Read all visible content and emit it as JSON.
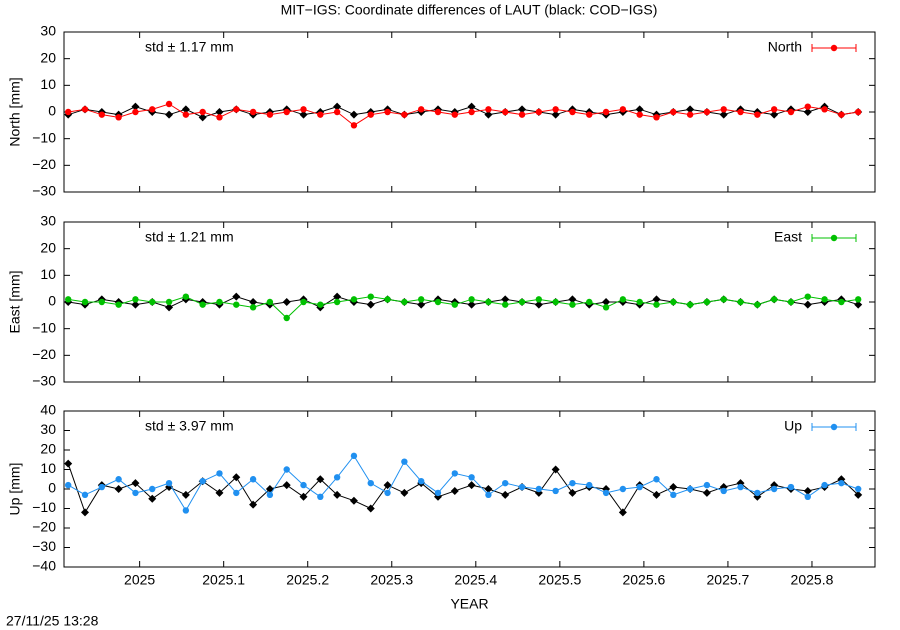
{
  "title": "MIT−IGS: Coordinate differences of LAUT (black: COD−IGS)",
  "timestamp": "27/11/25 13:28",
  "chart_data": [
    {
      "type": "line",
      "ylabel": "North [mm]",
      "annotation": "std ± 1.17 mm",
      "annotation_color": "#ff0000",
      "legend": "upper right",
      "show_xticklabels": false,
      "xlim": [
        2024.91,
        2025.875
      ],
      "xticks": [
        2025,
        2025.1,
        2025.2,
        2025.3,
        2025.4,
        2025.5,
        2025.6,
        2025.7,
        2025.8
      ],
      "ylim": [
        -30,
        30
      ],
      "yticks": [
        {
          "value": -30,
          "label": "−30"
        },
        {
          "value": -20,
          "label": "−20"
        },
        {
          "value": -10,
          "label": "−10"
        },
        0,
        10,
        20,
        30
      ],
      "x": [
        2024.915,
        2024.935,
        2024.955,
        2024.975,
        2024.995,
        2025.015,
        2025.035,
        2025.055,
        2025.075,
        2025.095,
        2025.115,
        2025.135,
        2025.155,
        2025.175,
        2025.195,
        2025.215,
        2025.235,
        2025.255,
        2025.275,
        2025.295,
        2025.315,
        2025.335,
        2025.355,
        2025.375,
        2025.395,
        2025.415,
        2025.435,
        2025.455,
        2025.475,
        2025.495,
        2025.515,
        2025.535,
        2025.555,
        2025.575,
        2025.595,
        2025.615,
        2025.635,
        2025.655,
        2025.675,
        2025.695,
        2025.715,
        2025.735,
        2025.755,
        2025.775,
        2025.795,
        2025.815,
        2025.835,
        2025.855
      ],
      "series": [
        {
          "color": "#000000",
          "marker": "diamond",
          "values": [
            -1,
            1,
            0,
            -1,
            2,
            0,
            -1,
            1,
            -2,
            0,
            1,
            -1,
            0,
            1,
            -1,
            0,
            2,
            -1,
            0,
            1,
            -1,
            0,
            1,
            0,
            2,
            -1,
            0,
            1,
            0,
            -1,
            1,
            0,
            -1,
            0,
            1,
            -1,
            0,
            1,
            0,
            -1,
            1,
            0,
            -1,
            1,
            0,
            2,
            -1,
            0
          ]
        },
        {
          "name": "North",
          "color": "#ff0000",
          "marker": "circle",
          "values": [
            0,
            1,
            -1,
            -2,
            0,
            1,
            3,
            -1,
            0,
            -2,
            1,
            0,
            -1,
            0,
            1,
            -1,
            0,
            -5,
            -1,
            0,
            -1,
            1,
            0,
            -1,
            0,
            1,
            0,
            -1,
            0,
            1,
            0,
            -1,
            0,
            1,
            -1,
            -2,
            0,
            -1,
            0,
            1,
            0,
            -1,
            1,
            0,
            2,
            1,
            -1,
            0
          ]
        }
      ]
    },
    {
      "type": "line",
      "ylabel": "East [mm]",
      "annotation": "std ± 1.21 mm",
      "annotation_color": "#00c000",
      "legend": "upper right",
      "show_xticklabels": false,
      "xlim": [
        2024.91,
        2025.875
      ],
      "xticks": [
        2025,
        2025.1,
        2025.2,
        2025.3,
        2025.4,
        2025.5,
        2025.6,
        2025.7,
        2025.8
      ],
      "ylim": [
        -30,
        30
      ],
      "yticks": [
        {
          "value": -30,
          "label": "−30"
        },
        {
          "value": -20,
          "label": "−20"
        },
        {
          "value": -10,
          "label": "−10"
        },
        0,
        10,
        20,
        30
      ],
      "x": [
        2024.915,
        2024.935,
        2024.955,
        2024.975,
        2024.995,
        2025.015,
        2025.035,
        2025.055,
        2025.075,
        2025.095,
        2025.115,
        2025.135,
        2025.155,
        2025.175,
        2025.195,
        2025.215,
        2025.235,
        2025.255,
        2025.275,
        2025.295,
        2025.315,
        2025.335,
        2025.355,
        2025.375,
        2025.395,
        2025.415,
        2025.435,
        2025.455,
        2025.475,
        2025.495,
        2025.515,
        2025.535,
        2025.555,
        2025.575,
        2025.595,
        2025.615,
        2025.635,
        2025.655,
        2025.675,
        2025.695,
        2025.715,
        2025.735,
        2025.755,
        2025.775,
        2025.795,
        2025.815,
        2025.835,
        2025.855
      ],
      "series": [
        {
          "color": "#000000",
          "marker": "diamond",
          "values": [
            0,
            -1,
            1,
            0,
            -1,
            0,
            -2,
            1,
            0,
            -1,
            2,
            0,
            -1,
            0,
            1,
            -2,
            2,
            0,
            -1,
            1,
            0,
            -1,
            1,
            0,
            -1,
            0,
            1,
            0,
            -1,
            0,
            1,
            -1,
            0,
            0,
            -1,
            1,
            0,
            -1,
            0,
            1,
            0,
            -1,
            1,
            0,
            -1,
            0,
            1,
            -1
          ]
        },
        {
          "name": "East",
          "color": "#00c000",
          "marker": "circle",
          "values": [
            1,
            0,
            0,
            -1,
            1,
            0,
            0,
            2,
            -1,
            0,
            -1,
            -2,
            0,
            -6,
            0,
            -1,
            0,
            1,
            2,
            1,
            0,
            1,
            0,
            -1,
            1,
            0,
            -1,
            0,
            1,
            0,
            -1,
            0,
            -2,
            1,
            0,
            -1,
            0,
            -1,
            0,
            1,
            0,
            -1,
            1,
            0,
            2,
            1,
            0,
            1
          ]
        }
      ]
    },
    {
      "type": "line",
      "ylabel": "Up [mm]",
      "xlabel": "YEAR",
      "annotation": "std ± 3.97 mm",
      "annotation_color": "#2090f0",
      "legend": "upper right",
      "show_xticklabels": true,
      "xlim": [
        2024.91,
        2025.875
      ],
      "xticks": [
        2025,
        2025.1,
        2025.2,
        2025.3,
        2025.4,
        2025.5,
        2025.6,
        2025.7,
        2025.8
      ],
      "ylim": [
        -40,
        40
      ],
      "yticks": [
        {
          "value": -40,
          "label": "−40"
        },
        {
          "value": -30,
          "label": "−30"
        },
        {
          "value": -20,
          "label": "−20"
        },
        {
          "value": -10,
          "label": "−10"
        },
        0,
        10,
        20,
        30,
        40
      ],
      "x": [
        2024.915,
        2024.935,
        2024.955,
        2024.975,
        2024.995,
        2025.015,
        2025.035,
        2025.055,
        2025.075,
        2025.095,
        2025.115,
        2025.135,
        2025.155,
        2025.175,
        2025.195,
        2025.215,
        2025.235,
        2025.255,
        2025.275,
        2025.295,
        2025.315,
        2025.335,
        2025.355,
        2025.375,
        2025.395,
        2025.415,
        2025.435,
        2025.455,
        2025.475,
        2025.495,
        2025.515,
        2025.535,
        2025.555,
        2025.575,
        2025.595,
        2025.615,
        2025.635,
        2025.655,
        2025.675,
        2025.695,
        2025.715,
        2025.735,
        2025.755,
        2025.775,
        2025.795,
        2025.815,
        2025.835,
        2025.855
      ],
      "series": [
        {
          "color": "#000000",
          "marker": "diamond",
          "values": [
            13,
            -12,
            2,
            0,
            3,
            -5,
            1,
            -3,
            4,
            -2,
            6,
            -8,
            0,
            2,
            -4,
            5,
            -3,
            -6,
            -10,
            2,
            -2,
            3,
            -4,
            -1,
            2,
            0,
            -3,
            1,
            -2,
            10,
            -2,
            1,
            0,
            -12,
            2,
            -3,
            1,
            0,
            -2,
            1,
            3,
            -4,
            2,
            0,
            -1,
            1,
            5,
            -3
          ]
        },
        {
          "name": "Up",
          "color": "#2090f0",
          "marker": "circle",
          "values": [
            2,
            -3,
            1,
            5,
            -2,
            0,
            3,
            -11,
            4,
            8,
            -2,
            5,
            -3,
            10,
            2,
            -4,
            6,
            17,
            3,
            -2,
            14,
            4,
            -2,
            8,
            6,
            -3,
            3,
            1,
            0,
            -1,
            3,
            2,
            -2,
            0,
            1,
            5,
            -3,
            0,
            2,
            -1,
            1,
            -2,
            0,
            1,
            -4,
            2,
            3,
            0
          ]
        }
      ]
    }
  ]
}
